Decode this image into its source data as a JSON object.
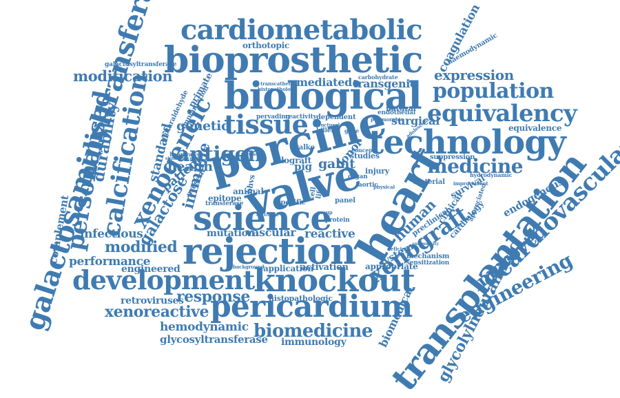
{
  "cloud": {
    "color": "#3f7bb1",
    "words": [
      {
        "text": "galactosaminyltransferase"
      },
      {
        "text": "complement"
      },
      {
        "text": "personalised"
      },
      {
        "text": "durability"
      },
      {
        "text": "calcification"
      },
      {
        "text": "xenogeneic"
      },
      {
        "text": "galactose"
      },
      {
        "text": "immune"
      },
      {
        "text": "cardiometabolic"
      },
      {
        "text": "bioprosthetic"
      },
      {
        "text": "biological"
      },
      {
        "text": "porcine"
      },
      {
        "text": "technology"
      },
      {
        "text": "valve"
      },
      {
        "text": "science"
      },
      {
        "text": "heart"
      },
      {
        "text": "rejection"
      },
      {
        "text": "development"
      },
      {
        "text": "knockout"
      },
      {
        "text": "pericardium"
      },
      {
        "text": "biomedicine"
      },
      {
        "text": "transplantation"
      },
      {
        "text": "cardiovascular"
      },
      {
        "text": "xenograft"
      },
      {
        "text": "engineering"
      },
      {
        "text": "glycolylneuraminic"
      },
      {
        "text": "improved"
      },
      {
        "text": "equivalency"
      },
      {
        "text": "population"
      },
      {
        "text": "tissue"
      },
      {
        "text": "antigen"
      },
      {
        "text": "medicine"
      },
      {
        "text": "expression"
      },
      {
        "text": "coagulation"
      },
      {
        "text": "modification"
      },
      {
        "text": "orthotopic"
      },
      {
        "text": "genetic"
      },
      {
        "text": "health"
      },
      {
        "text": "patient"
      },
      {
        "text": "standard"
      },
      {
        "text": "modified"
      },
      {
        "text": "performance"
      },
      {
        "text": "infectious"
      },
      {
        "text": "engineered"
      },
      {
        "text": "response"
      },
      {
        "text": "xenoreactive"
      },
      {
        "text": "retroviruses"
      },
      {
        "text": "hemodynamic"
      },
      {
        "text": "glycosyltransferase"
      },
      {
        "text": "immunology"
      },
      {
        "text": "histopathologic"
      },
      {
        "text": "application"
      },
      {
        "text": "activation"
      },
      {
        "text": "reactive"
      },
      {
        "text": "mutation"
      },
      {
        "text": "vascular"
      },
      {
        "text": "human"
      },
      {
        "text": "system"
      },
      {
        "text": "galnt"
      },
      {
        "text": "mediated"
      },
      {
        "text": "transgenic"
      },
      {
        "text": "surgical"
      },
      {
        "text": "primate"
      },
      {
        "text": "endogenous"
      },
      {
        "text": "survival"
      },
      {
        "text": "clinical"
      },
      {
        "text": "cardiology"
      },
      {
        "text": "biomedical"
      },
      {
        "text": "equivalence"
      },
      {
        "text": "galactosyltransferase"
      },
      {
        "text": "glutaraldehyde"
      },
      {
        "text": "implantation"
      },
      {
        "text": "haemodynamic"
      },
      {
        "text": "carbohydrate"
      },
      {
        "text": "allograft"
      },
      {
        "text": "donor"
      },
      {
        "text": "studies"
      },
      {
        "text": "pig"
      },
      {
        "text": "epitope"
      },
      {
        "text": "animal"
      },
      {
        "text": "present"
      },
      {
        "text": "transferase"
      },
      {
        "text": "appropriate"
      },
      {
        "text": "sensitization"
      },
      {
        "text": "mechanism"
      },
      {
        "text": "material"
      },
      {
        "text": "suppression"
      },
      {
        "text": "natural"
      },
      {
        "text": "endothelial"
      },
      {
        "text": "hydrodynamic"
      },
      {
        "text": "improvement"
      },
      {
        "text": "appreciated"
      },
      {
        "text": "preclinical"
      },
      {
        "text": "injury"
      },
      {
        "text": "dependent"
      },
      {
        "text": "reactivity"
      },
      {
        "text": "pervading"
      },
      {
        "text": "heartvalve"
      },
      {
        "text": "panel"
      },
      {
        "text": "cell"
      },
      {
        "text": "life"
      },
      {
        "text": "protein"
      },
      {
        "text": "specific"
      },
      {
        "text": "bhvs"
      },
      {
        "text": "aortic"
      },
      {
        "text": "organ"
      },
      {
        "text": "killer"
      },
      {
        "text": "gene"
      },
      {
        "text": "concept"
      },
      {
        "text": "background"
      },
      {
        "text": "physical"
      },
      {
        "text": "structural"
      },
      {
        "text": "polymorphic"
      },
      {
        "text": "adolescent"
      },
      {
        "text": "histopathology"
      },
      {
        "text": "transcatheter"
      },
      {
        "text": "significance"
      },
      {
        "text": "regulatory"
      },
      {
        "text": "deficient"
      },
      {
        "text": "antigenicity"
      },
      {
        "text": "individual"
      },
      {
        "text": "group"
      },
      {
        "text": "galko"
      }
    ]
  }
}
